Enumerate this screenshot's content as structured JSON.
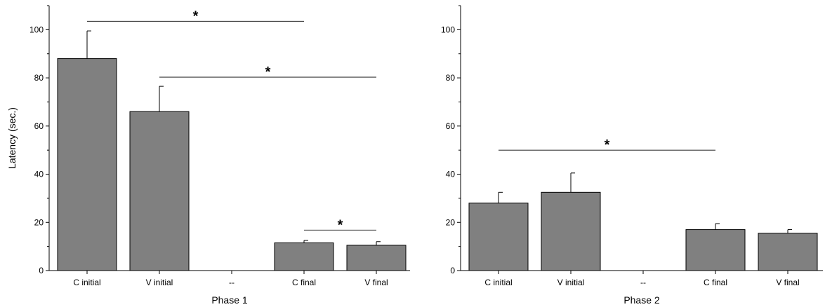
{
  "chart_data": [
    {
      "type": "bar",
      "xlabel": "Phase 1",
      "ylabel": "Latency (sec.)",
      "categories": [
        "C initial",
        "V initial",
        "--",
        "C final",
        "V final"
      ],
      "values": [
        88,
        66,
        null,
        11.5,
        10.5
      ],
      "errors": [
        11.5,
        10.5,
        null,
        1,
        1.5
      ],
      "ylim": [
        0,
        110
      ],
      "yticks": [
        0,
        20,
        40,
        60,
        80,
        100
      ],
      "bar_color": "#808080",
      "significance": [
        {
          "from": 0,
          "to": 3,
          "y": 103.5,
          "label": "*"
        },
        {
          "from": 1,
          "to": 4,
          "y": 80.3,
          "label": "*"
        },
        {
          "from": 3,
          "to": 4,
          "y": 16.8,
          "label": "*"
        }
      ]
    },
    {
      "type": "bar",
      "xlabel": "Phase 2",
      "ylabel": "",
      "categories": [
        "C initial",
        "V initial",
        "--",
        "C final",
        "V final"
      ],
      "values": [
        28,
        32.5,
        null,
        17,
        15.5
      ],
      "errors": [
        4.5,
        8,
        null,
        2.5,
        1.5
      ],
      "ylim": [
        0,
        110
      ],
      "yticks": [
        0,
        20,
        40,
        60,
        80,
        100
      ],
      "bar_color": "#808080",
      "significance": [
        {
          "from": 0,
          "to": 3,
          "y": 50,
          "label": "*"
        }
      ]
    }
  ]
}
